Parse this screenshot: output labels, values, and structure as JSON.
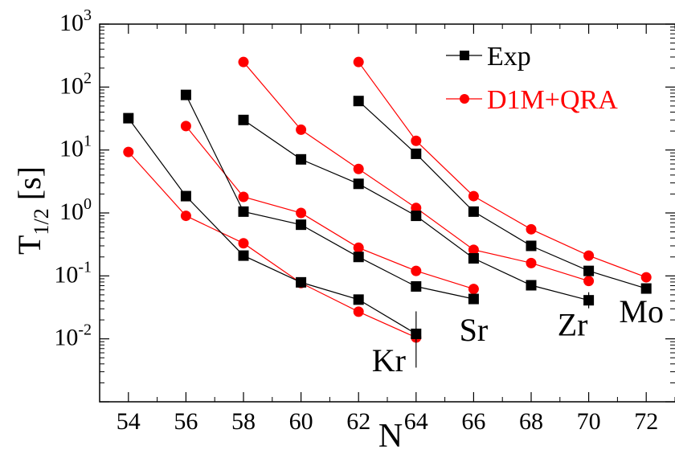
{
  "chart_data": {
    "type": "line",
    "xlabel": "N",
    "ylabel": "T",
    "ylabel_sub": "1/2",
    "ylabel_unit": "[s]",
    "xlim": [
      53,
      73
    ],
    "ylim": [
      0.001,
      1000
    ],
    "yscale": "log",
    "x_ticks": [
      "54",
      "56",
      "58",
      "60",
      "62",
      "64",
      "66",
      "68",
      "70",
      "72"
    ],
    "y_ticks": [
      {
        "base": "10",
        "exp": "-2",
        "value": 0.01
      },
      {
        "base": "10",
        "exp": "-1",
        "value": 0.1
      },
      {
        "base": "10",
        "exp": "0",
        "value": 1
      },
      {
        "base": "10",
        "exp": "1",
        "value": 10
      },
      {
        "base": "10",
        "exp": "2",
        "value": 100
      },
      {
        "base": "10",
        "exp": "3",
        "value": 1000
      }
    ],
    "legend_position": "top-right",
    "series": [
      {
        "name": "Exp",
        "color": "#000000",
        "marker": "square"
      },
      {
        "name": "D1M+QRA",
        "color": "#ff0000",
        "marker": "circle"
      }
    ],
    "isotopes": [
      {
        "label": "Kr",
        "exp": {
          "x": [
            54,
            56,
            58,
            60,
            62,
            64
          ],
          "y": [
            32,
            1.85,
            0.21,
            0.079,
            0.042,
            0.012
          ]
        },
        "theory": {
          "x": [
            54,
            56,
            58,
            60,
            62,
            64
          ],
          "y": [
            9.3,
            0.9,
            0.33,
            0.077,
            0.027,
            0.0105
          ]
        }
      },
      {
        "label": "Sr",
        "exp": {
          "x": [
            56,
            58,
            60,
            62,
            64,
            66
          ],
          "y": [
            75,
            1.05,
            0.65,
            0.2,
            0.068,
            0.043
          ]
        },
        "theory": {
          "x": [
            56,
            58,
            60,
            62,
            64,
            66
          ],
          "y": [
            24,
            1.8,
            1.0,
            0.28,
            0.12,
            0.062
          ]
        }
      },
      {
        "label": "Zr",
        "exp": {
          "x": [
            58,
            60,
            62,
            64,
            66,
            68,
            70
          ],
          "y": [
            30,
            7.1,
            2.9,
            0.9,
            0.19,
            0.071,
            0.041
          ]
        },
        "theory": {
          "x": [
            58,
            60,
            62,
            64,
            66,
            68,
            70
          ],
          "y": [
            250,
            21,
            5.0,
            1.2,
            0.26,
            0.16,
            0.083
          ]
        }
      },
      {
        "label": "Mo",
        "exp": {
          "x": [
            62,
            64,
            66,
            68,
            70,
            72
          ],
          "y": [
            60,
            8.7,
            1.05,
            0.3,
            0.12,
            0.063
          ]
        },
        "theory": {
          "x": [
            62,
            64,
            66,
            68,
            70,
            72
          ],
          "y": [
            250,
            14,
            1.85,
            0.55,
            0.21,
            0.095
          ]
        }
      }
    ]
  }
}
